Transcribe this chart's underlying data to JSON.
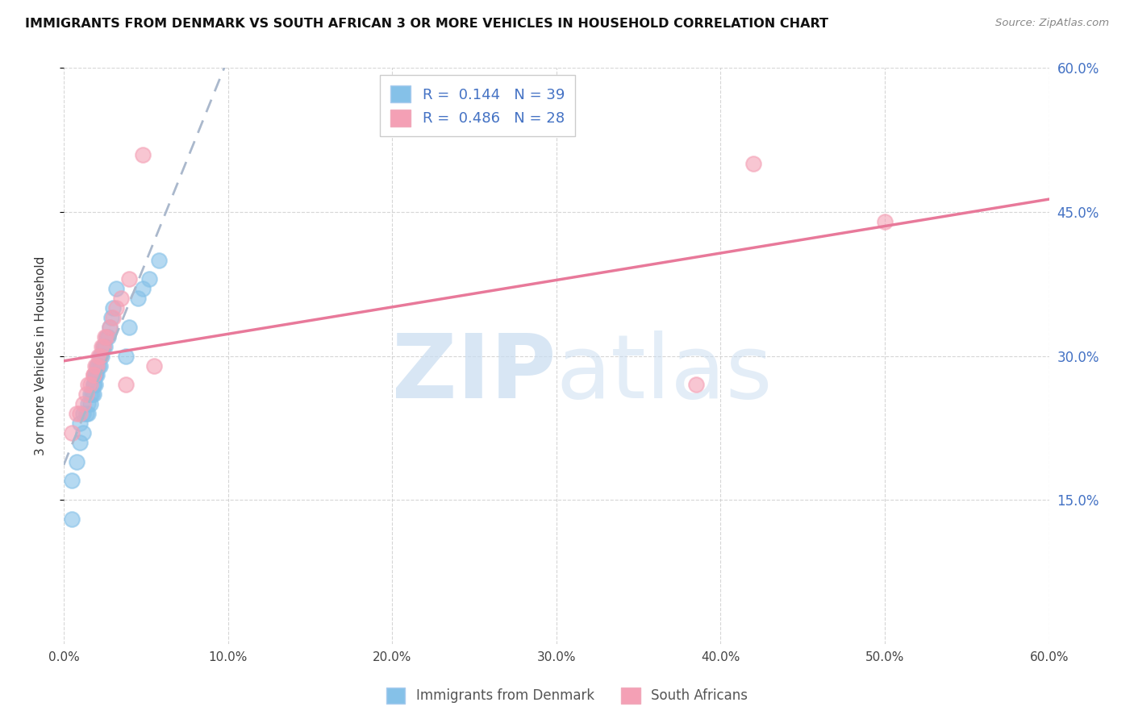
{
  "title": "IMMIGRANTS FROM DENMARK VS SOUTH AFRICAN 3 OR MORE VEHICLES IN HOUSEHOLD CORRELATION CHART",
  "source": "Source: ZipAtlas.com",
  "ylabel": "3 or more Vehicles in Household",
  "xlabel": "",
  "xlim": [
    0.0,
    0.6
  ],
  "ylim": [
    0.0,
    0.6
  ],
  "xticks": [
    0.0,
    0.1,
    0.2,
    0.3,
    0.4,
    0.5,
    0.6
  ],
  "yticks_right": [
    0.15,
    0.3,
    0.45,
    0.6
  ],
  "ytick_labels_right": [
    "15.0%",
    "30.0%",
    "45.0%",
    "60.0%"
  ],
  "xtick_labels": [
    "0.0%",
    "10.0%",
    "20.0%",
    "30.0%",
    "40.0%",
    "50.0%",
    "60.0%"
  ],
  "series1_name": "Immigrants from Denmark",
  "series1_color": "#85c1e8",
  "series1_R": 0.144,
  "series1_N": 39,
  "series2_name": "South Africans",
  "series2_color": "#f4a0b5",
  "series2_R": 0.486,
  "series2_N": 28,
  "background_color": "#ffffff",
  "grid_color": "#cccccc",
  "watermark_color": "#c8dcf0",
  "series1_x": [
    0.005,
    0.005,
    0.008,
    0.01,
    0.01,
    0.012,
    0.012,
    0.014,
    0.015,
    0.015,
    0.016,
    0.016,
    0.017,
    0.018,
    0.018,
    0.018,
    0.019,
    0.019,
    0.019,
    0.02,
    0.02,
    0.021,
    0.022,
    0.022,
    0.023,
    0.024,
    0.025,
    0.026,
    0.027,
    0.028,
    0.029,
    0.03,
    0.032,
    0.038,
    0.04,
    0.045,
    0.048,
    0.052,
    0.058
  ],
  "series1_y": [
    0.13,
    0.17,
    0.19,
    0.21,
    0.23,
    0.22,
    0.24,
    0.24,
    0.24,
    0.25,
    0.25,
    0.26,
    0.26,
    0.26,
    0.27,
    0.27,
    0.27,
    0.28,
    0.28,
    0.28,
    0.29,
    0.29,
    0.29,
    0.3,
    0.3,
    0.31,
    0.31,
    0.32,
    0.32,
    0.33,
    0.34,
    0.35,
    0.37,
    0.3,
    0.33,
    0.36,
    0.37,
    0.38,
    0.4
  ],
  "series2_x": [
    0.005,
    0.008,
    0.01,
    0.012,
    0.014,
    0.015,
    0.016,
    0.018,
    0.018,
    0.019,
    0.02,
    0.021,
    0.022,
    0.023,
    0.024,
    0.025,
    0.026,
    0.028,
    0.03,
    0.032,
    0.035,
    0.038,
    0.04,
    0.048,
    0.055,
    0.385,
    0.42,
    0.5
  ],
  "series2_y": [
    0.22,
    0.24,
    0.24,
    0.25,
    0.26,
    0.27,
    0.27,
    0.28,
    0.28,
    0.29,
    0.29,
    0.3,
    0.3,
    0.31,
    0.31,
    0.32,
    0.32,
    0.33,
    0.34,
    0.35,
    0.36,
    0.27,
    0.38,
    0.51,
    0.29,
    0.27,
    0.5,
    0.44
  ]
}
